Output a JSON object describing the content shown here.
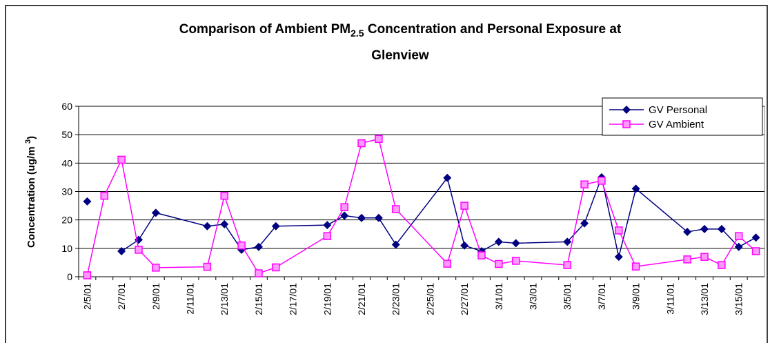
{
  "chart_data": {
    "type": "line",
    "title": [
      "Comparison of Ambient PM",
      "2.5",
      " Concentration and Personal Exposure at",
      "Glenview"
    ],
    "y_label": [
      "Concentration (ug/m ",
      "3",
      ")"
    ],
    "x": [
      "2/5/01",
      "2/6/01",
      "2/7/01",
      "2/8/01",
      "2/9/01",
      "2/12/01",
      "2/13/01",
      "2/14/01",
      "2/15/01",
      "2/16/01",
      "2/19/01",
      "2/20/01",
      "2/21/01",
      "2/22/01",
      "2/23/01",
      "2/26/01",
      "2/27/01",
      "2/28/01",
      "3/1/01",
      "3/2/01",
      "3/5/01",
      "3/6/01",
      "3/7/01",
      "3/8/01",
      "3/9/01",
      "3/12/01",
      "3/13/01",
      "3/14/01",
      "3/15/01",
      "3/16/01"
    ],
    "series": [
      {
        "name": "GV Personal",
        "color": "#000080",
        "marker": "diamond",
        "values": [
          26.5,
          null,
          9,
          13,
          22.5,
          17.8,
          18.5,
          9.5,
          10.5,
          17.8,
          18.2,
          21.5,
          20.7,
          20.7,
          11.3,
          34.8,
          11,
          9,
          12.3,
          11.8,
          12.3,
          18.8,
          35,
          7,
          31,
          15.8,
          16.8,
          16.8,
          10.5,
          13.8
        ]
      },
      {
        "name": "GV Ambient",
        "color": "#ff00ff",
        "marker": "square",
        "values": [
          0.5,
          28.5,
          41.2,
          9.5,
          3.2,
          3.5,
          28.5,
          11,
          1.2,
          3.3,
          14.3,
          24.5,
          47,
          48.5,
          23.8,
          4.6,
          25,
          7.5,
          4.5,
          5.6,
          4.1,
          32.5,
          33.8,
          16.3,
          3.6,
          6.1,
          7,
          4.1,
          14.3,
          9
        ]
      }
    ],
    "xticks": [
      "2/5/01",
      "2/7/01",
      "2/9/01",
      "2/11/01",
      "2/13/01",
      "2/15/01",
      "2/17/01",
      "2/19/01",
      "2/21/01",
      "2/23/01",
      "2/25/01",
      "2/27/01",
      "3/1/01",
      "3/3/01",
      "3/5/01",
      "3/7/01",
      "3/9/01",
      "3/11/01",
      "3/13/01",
      "3/15/01"
    ],
    "ylim": [
      0,
      60
    ],
    "yticks": [
      0,
      10,
      20,
      30,
      40,
      50,
      60
    ],
    "grid": true,
    "legend": "upper right"
  }
}
